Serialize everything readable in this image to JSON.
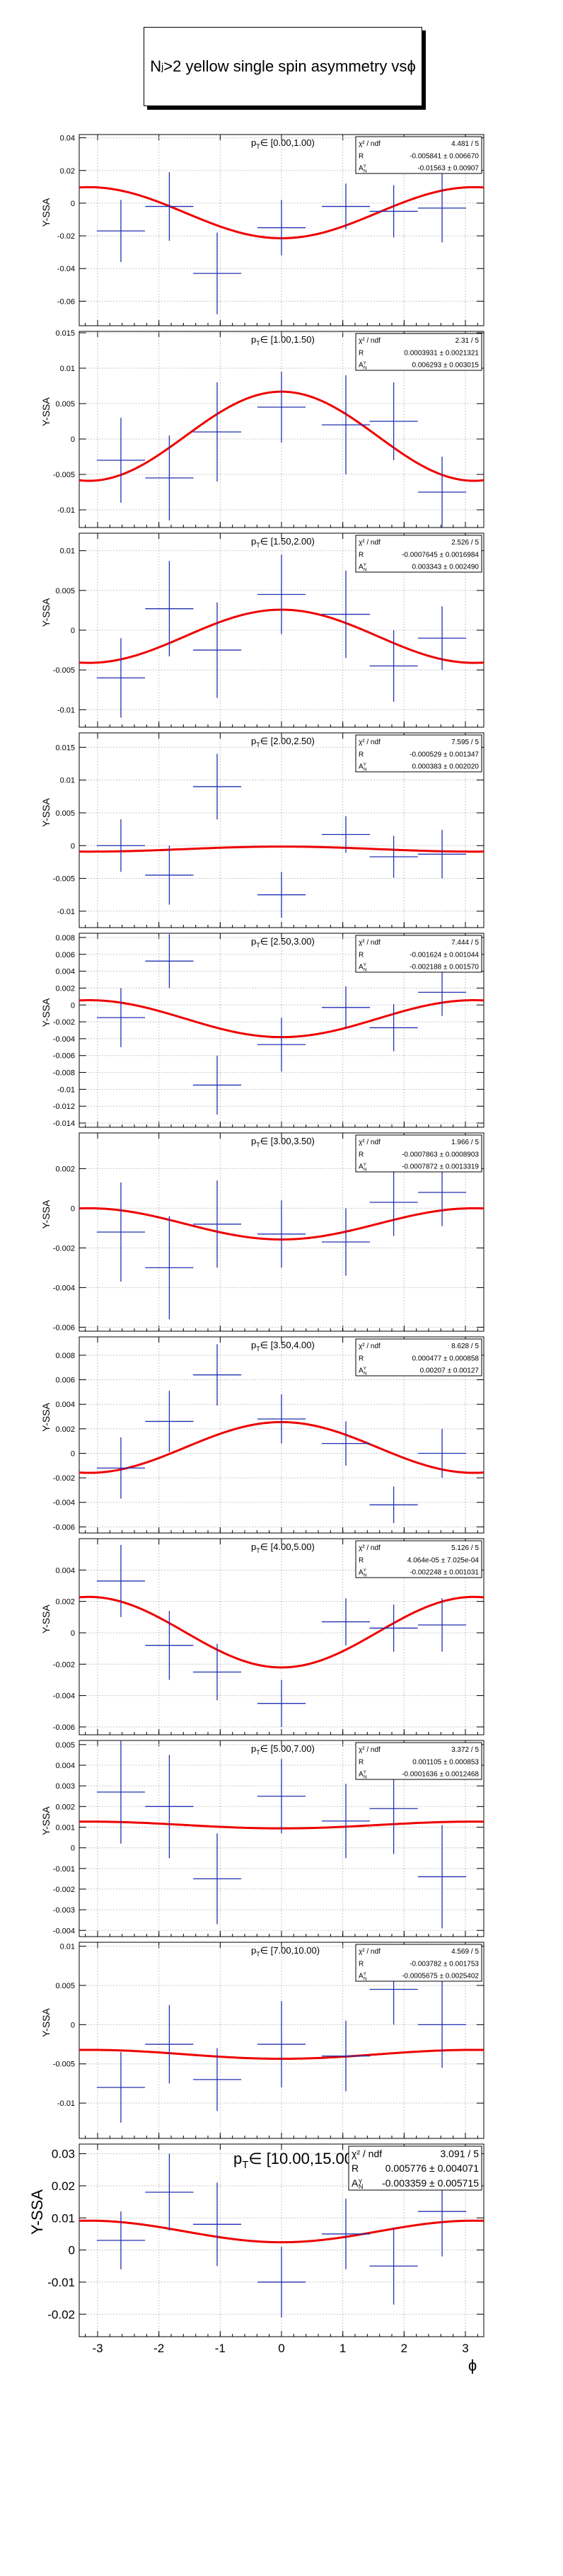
{
  "page_title_parts": {
    "n": "N",
    "sub": "j",
    "rest": ">2 yellow single spin asymmetry vs ",
    "phi": "ϕ"
  },
  "x_axis_label": "ϕ",
  "y_axis_label": "Y-SSA",
  "stats_labels": {
    "chi2": "χ² / ndf",
    "r": "R",
    "a": "A",
    "a_sub": "N",
    "a_sup": "Y"
  },
  "colors": {
    "data": "#2030b0",
    "fit": "#ee0000",
    "grid": "#c8c8c8"
  },
  "x_ticks": [
    -3,
    -2,
    -1,
    0,
    1,
    2,
    3
  ],
  "x_range": [
    -3.3,
    3.3
  ],
  "chart_data": [
    {
      "type": "scatter",
      "title": "p_T∈ [0.00,1.00)",
      "ylim": [
        -0.075,
        0.042
      ],
      "yticks": [
        -0.06,
        -0.04,
        -0.02,
        0,
        0.02,
        0.04
      ],
      "ytick_labels": [
        "-0.06",
        "-0.04",
        "-0.02",
        "0",
        "0.02",
        "0.04"
      ],
      "stats": {
        "chi2": "4.481 / 5",
        "R": "-0.005841 ± 0.006670",
        "A": "-0.01563 ± 0.00907"
      },
      "fit": {
        "R": -0.005841,
        "A": -0.01563
      },
      "points": [
        {
          "x": -2.62,
          "y": -0.017,
          "ey": 0.019
        },
        {
          "x": -1.83,
          "y": -0.002,
          "ey": 0.021
        },
        {
          "x": -1.05,
          "y": -0.043,
          "ey": 0.025
        },
        {
          "x": 0.0,
          "y": -0.015,
          "ey": 0.017
        },
        {
          "x": 1.05,
          "y": -0.002,
          "ey": 0.014
        },
        {
          "x": 1.83,
          "y": -0.005,
          "ey": 0.016
        },
        {
          "x": 2.62,
          "y": -0.003,
          "ey": 0.021
        }
      ]
    },
    {
      "type": "scatter",
      "title": "p_T∈ [1.00,1.50)",
      "ylim": [
        -0.0125,
        0.0152
      ],
      "yticks": [
        -0.01,
        -0.005,
        0,
        0.005,
        0.01,
        0.015
      ],
      "ytick_labels": [
        "-0.01",
        "-0.005",
        "0",
        "0.005",
        "0.01",
        "0.015"
      ],
      "stats": {
        "chi2": "2.31 / 5",
        "R": "0.0003931 ± 0.0021321",
        "A": "0.006293 ± 0.003015"
      },
      "fit": {
        "R": 0.0003931,
        "A": 0.006293
      },
      "points": [
        {
          "x": -2.62,
          "y": -0.003,
          "ey": 0.006
        },
        {
          "x": -1.83,
          "y": -0.0055,
          "ey": 0.006
        },
        {
          "x": -1.05,
          "y": 0.001,
          "ey": 0.007
        },
        {
          "x": 0.0,
          "y": 0.0045,
          "ey": 0.005
        },
        {
          "x": 1.05,
          "y": 0.002,
          "ey": 0.007
        },
        {
          "x": 1.83,
          "y": 0.0025,
          "ey": 0.0055
        },
        {
          "x": 2.62,
          "y": -0.0075,
          "ey": 0.005
        }
      ]
    },
    {
      "type": "scatter",
      "title": "p_T∈ [1.50,2.00)",
      "ylim": [
        -0.0122,
        0.0122
      ],
      "yticks": [
        -0.01,
        -0.005,
        0,
        0.005,
        0.01
      ],
      "ytick_labels": [
        "-0.01",
        "-0.005",
        "0",
        "0.005",
        "0.01"
      ],
      "stats": {
        "chi2": "2.526 / 5",
        "R": "-0.0007645 ± 0.0016984",
        "A": "0.003343 ± 0.002490"
      },
      "fit": {
        "R": -0.0007645,
        "A": 0.003343
      },
      "points": [
        {
          "x": -2.62,
          "y": -0.006,
          "ey": 0.005
        },
        {
          "x": -1.83,
          "y": 0.0027,
          "ey": 0.006
        },
        {
          "x": -1.05,
          "y": -0.0025,
          "ey": 0.006
        },
        {
          "x": 0.0,
          "y": 0.0045,
          "ey": 0.005
        },
        {
          "x": 1.05,
          "y": 0.002,
          "ey": 0.0055
        },
        {
          "x": 1.83,
          "y": -0.0045,
          "ey": 0.0045
        },
        {
          "x": 2.62,
          "y": -0.001,
          "ey": 0.004
        }
      ]
    },
    {
      "type": "scatter",
      "title": "p_T∈ [2.00,2.50)",
      "ylim": [
        -0.0125,
        0.0172
      ],
      "yticks": [
        -0.01,
        -0.005,
        0,
        0.005,
        0.01,
        0.015
      ],
      "ytick_labels": [
        "-0.01",
        "-0.005",
        "0",
        "0.005",
        "0.01",
        "0.015"
      ],
      "stats": {
        "chi2": "7.595 / 5",
        "R": "-0.000529 ± 0.001347",
        "A": "0.000383 ± 0.002020"
      },
      "fit": {
        "R": -0.000529,
        "A": 0.000383
      },
      "points": [
        {
          "x": -2.62,
          "y": 0.0,
          "ey": 0.004
        },
        {
          "x": -1.83,
          "y": -0.0045,
          "ey": 0.0045
        },
        {
          "x": -1.05,
          "y": 0.009,
          "ey": 0.005
        },
        {
          "x": 0.0,
          "y": -0.0075,
          "ey": 0.0035
        },
        {
          "x": 1.05,
          "y": 0.0017,
          "ey": 0.0028
        },
        {
          "x": 1.83,
          "y": -0.0017,
          "ey": 0.0032
        },
        {
          "x": 2.62,
          "y": -0.0013,
          "ey": 0.0037
        }
      ]
    },
    {
      "type": "scatter",
      "title": "p_T∈ [2.50,3.00)",
      "ylim": [
        -0.0145,
        0.0085
      ],
      "yticks": [
        -0.014,
        -0.012,
        -0.01,
        -0.008,
        -0.006,
        -0.004,
        -0.002,
        0,
        0.002,
        0.004,
        0.006,
        0.008
      ],
      "ytick_labels": [
        "-0.014",
        "-0.012",
        "-0.01",
        "-0.008",
        "-0.006",
        "-0.004",
        "-0.002",
        "0",
        "0.002",
        "0.004",
        "0.006",
        "0.008"
      ],
      "stats": {
        "chi2": "7.444 / 5",
        "R": "-0.001624 ± 0.001044",
        "A": "-0.002188 ± 0.001570"
      },
      "fit": {
        "R": -0.001624,
        "A": -0.002188
      },
      "points": [
        {
          "x": -2.62,
          "y": -0.0015,
          "ey": 0.0035
        },
        {
          "x": -1.83,
          "y": 0.0052,
          "ey": 0.0032
        },
        {
          "x": -1.05,
          "y": -0.0095,
          "ey": 0.0035
        },
        {
          "x": 0.0,
          "y": -0.0047,
          "ey": 0.0032
        },
        {
          "x": 1.05,
          "y": -0.0003,
          "ey": 0.0025
        },
        {
          "x": 1.83,
          "y": -0.0027,
          "ey": 0.0028
        },
        {
          "x": 2.62,
          "y": 0.0015,
          "ey": 0.0028
        }
      ]
    },
    {
      "type": "scatter",
      "title": "p_T∈ [3.00,3.50)",
      "ylim": [
        -0.0062,
        0.0038
      ],
      "yticks": [
        -0.006,
        -0.004,
        -0.002,
        0,
        0.002
      ],
      "ytick_labels": [
        "-0.006",
        "-0.004",
        "-0.002",
        "0",
        "0.002"
      ],
      "stats": {
        "chi2": "1.966 / 5",
        "R": "-0.0007863 ± 0.0008903",
        "A": "-0.0007872 ± 0.0013319"
      },
      "fit": {
        "R": -0.0007863,
        "A": -0.0007872
      },
      "points": [
        {
          "x": -2.62,
          "y": -0.0012,
          "ey": 0.0025
        },
        {
          "x": -1.83,
          "y": -0.003,
          "ey": 0.0026
        },
        {
          "x": -1.05,
          "y": -0.0008,
          "ey": 0.0022
        },
        {
          "x": 0.0,
          "y": -0.0013,
          "ey": 0.0017
        },
        {
          "x": 1.05,
          "y": -0.0017,
          "ey": 0.0017
        },
        {
          "x": 1.83,
          "y": 0.0003,
          "ey": 0.0017
        },
        {
          "x": 2.62,
          "y": 0.0008,
          "ey": 0.0017
        }
      ]
    },
    {
      "type": "scatter",
      "title": "p_T∈ [3.50,4.00)",
      "ylim": [
        -0.0065,
        0.0095
      ],
      "yticks": [
        -0.006,
        -0.004,
        -0.002,
        0,
        0.002,
        0.004,
        0.006,
        0.008
      ],
      "ytick_labels": [
        "-0.006",
        "-0.004",
        "-0.002",
        "0",
        "0.002",
        "0.004",
        "0.006",
        "0.008"
      ],
      "stats": {
        "chi2": "8.628 / 5",
        "R": "0.000477 ± 0.000858",
        "A": "0.00207 ± 0.00127"
      },
      "fit": {
        "R": 0.000477,
        "A": 0.00207
      },
      "points": [
        {
          "x": -2.62,
          "y": -0.0012,
          "ey": 0.0025
        },
        {
          "x": -1.83,
          "y": 0.0026,
          "ey": 0.0025
        },
        {
          "x": -1.05,
          "y": 0.0064,
          "ey": 0.0025
        },
        {
          "x": 0.0,
          "y": 0.0028,
          "ey": 0.002
        },
        {
          "x": 1.05,
          "y": 0.0008,
          "ey": 0.0018
        },
        {
          "x": 1.83,
          "y": -0.0042,
          "ey": 0.0015
        },
        {
          "x": 2.62,
          "y": 0.0,
          "ey": 0.002
        }
      ]
    },
    {
      "type": "scatter",
      "title": "p_T∈ [4.00,5.00)",
      "ylim": [
        -0.0065,
        0.006
      ],
      "yticks": [
        -0.006,
        -0.004,
        -0.002,
        0,
        0.002,
        0.004
      ],
      "ytick_labels": [
        "-0.006",
        "-0.004",
        "-0.002",
        "0",
        "0.002",
        "0.004"
      ],
      "stats": {
        "chi2": "5.126 / 5",
        "R": "4.064e-05 ± 7.025e-04",
        "A": "-0.002248 ± 0.001031"
      },
      "fit": {
        "R": 4.064e-05,
        "A": -0.002248
      },
      "points": [
        {
          "x": -2.62,
          "y": 0.0033,
          "ey": 0.0023
        },
        {
          "x": -1.83,
          "y": -0.0008,
          "ey": 0.0022
        },
        {
          "x": -1.05,
          "y": -0.0025,
          "ey": 0.0018
        },
        {
          "x": 0.0,
          "y": -0.0045,
          "ey": 0.0015
        },
        {
          "x": 1.05,
          "y": 0.0007,
          "ey": 0.0015
        },
        {
          "x": 1.83,
          "y": 0.0003,
          "ey": 0.0015
        },
        {
          "x": 2.62,
          "y": 0.0005,
          "ey": 0.0017
        }
      ]
    },
    {
      "type": "scatter",
      "title": "p_T∈ [5.00,7.00)",
      "ylim": [
        -0.0043,
        0.0052
      ],
      "yticks": [
        -0.004,
        -0.003,
        -0.002,
        -0.001,
        0,
        0.001,
        0.002,
        0.003,
        0.004,
        0.005
      ],
      "ytick_labels": [
        "-0.004",
        "-0.003",
        "-0.002",
        "-0.001",
        "0",
        "0.001",
        "0.002",
        "0.003",
        "0.004",
        "0.005"
      ],
      "stats": {
        "chi2": "3.372 / 5",
        "R": "0.001105 ± 0.000853",
        "A": "-0.0001636 ± 0.0012468"
      },
      "fit": {
        "R": 0.001105,
        "A": -0.0001636
      },
      "points": [
        {
          "x": -2.62,
          "y": 0.0027,
          "ey": 0.0025
        },
        {
          "x": -1.83,
          "y": 0.002,
          "ey": 0.0025
        },
        {
          "x": -1.05,
          "y": -0.0015,
          "ey": 0.0022
        },
        {
          "x": 0.0,
          "y": 0.0025,
          "ey": 0.0018
        },
        {
          "x": 1.05,
          "y": 0.0013,
          "ey": 0.0018
        },
        {
          "x": 1.83,
          "y": 0.0019,
          "ey": 0.0022
        },
        {
          "x": 2.62,
          "y": -0.0014,
          "ey": 0.0025
        }
      ]
    },
    {
      "type": "scatter",
      "title": "p_T∈ [7.00,10.00)",
      "ylim": [
        -0.0145,
        0.0105
      ],
      "yticks": [
        -0.01,
        -0.005,
        0,
        0.005,
        0.01
      ],
      "ytick_labels": [
        "-0.01",
        "-0.005",
        "0",
        "0.005",
        "0.01"
      ],
      "stats": {
        "chi2": "4.569 / 5",
        "R": "-0.003782 ± 0.001753",
        "A": "-0.0005675 ± 0.0025402"
      },
      "fit": {
        "R": -0.003782,
        "A": -0.0005675
      },
      "points": [
        {
          "x": -2.62,
          "y": -0.008,
          "ey": 0.0045
        },
        {
          "x": -1.83,
          "y": -0.0025,
          "ey": 0.005
        },
        {
          "x": -1.05,
          "y": -0.007,
          "ey": 0.004
        },
        {
          "x": 0.0,
          "y": -0.0025,
          "ey": 0.0055
        },
        {
          "x": 1.05,
          "y": -0.004,
          "ey": 0.0045
        },
        {
          "x": 1.83,
          "y": 0.0045,
          "ey": 0.0045
        },
        {
          "x": 2.62,
          "y": 0.0,
          "ey": 0.0055
        }
      ]
    },
    {
      "type": "scatter",
      "title": "p_T∈ [10.00,15.00)",
      "ylim": [
        -0.027,
        0.033
      ],
      "yticks": [
        -0.02,
        -0.01,
        0,
        0.01,
        0.02,
        0.03
      ],
      "ytick_labels": [
        "-0.02",
        "-0.01",
        "0",
        "0.01",
        "0.02",
        "0.03"
      ],
      "stats": {
        "chi2": "3.091 / 5",
        "R": "0.005776 ± 0.004071",
        "A": "-0.003359 ± 0.005715"
      },
      "fit": {
        "R": 0.005776,
        "A": -0.003359
      },
      "points": [
        {
          "x": -2.62,
          "y": 0.003,
          "ey": 0.009
        },
        {
          "x": -1.83,
          "y": 0.018,
          "ey": 0.012
        },
        {
          "x": -1.05,
          "y": 0.008,
          "ey": 0.013
        },
        {
          "x": 0.0,
          "y": -0.01,
          "ey": 0.011
        },
        {
          "x": 1.05,
          "y": 0.005,
          "ey": 0.011
        },
        {
          "x": 1.83,
          "y": -0.005,
          "ey": 0.012
        },
        {
          "x": 2.62,
          "y": 0.012,
          "ey": 0.014
        }
      ]
    }
  ]
}
